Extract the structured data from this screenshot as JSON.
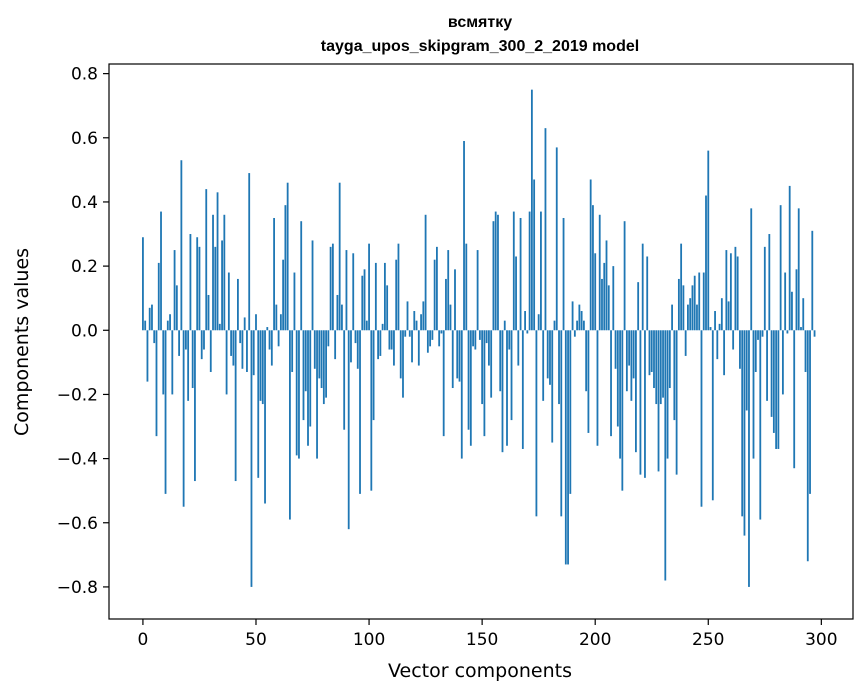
{
  "chart_data": {
    "type": "bar",
    "title_line1": "всмятку",
    "title_line2": "tayga_upos_skipgram_300_2_2019 model",
    "xlabel": "Vector components",
    "ylabel": "Components values",
    "xlim": [
      -15,
      314
    ],
    "ylim": [
      -0.9,
      0.83
    ],
    "xticks": [
      0,
      50,
      100,
      150,
      200,
      250,
      300
    ],
    "yticks": [
      -0.8,
      -0.6,
      -0.4,
      -0.2,
      0.0,
      0.2,
      0.4,
      0.6,
      0.8
    ],
    "ytick_labels": [
      "−0.8",
      "−0.6",
      "−0.4",
      "−0.2",
      "0.0",
      "0.2",
      "0.4",
      "0.6",
      "0.8"
    ],
    "grid": false,
    "color": "#1f77b4",
    "values": [
      0.29,
      0.03,
      -0.16,
      0.07,
      0.08,
      -0.04,
      -0.33,
      0.21,
      0.37,
      -0.2,
      -0.51,
      0.03,
      0.05,
      -0.2,
      0.25,
      0.14,
      -0.08,
      0.53,
      -0.55,
      -0.06,
      -0.22,
      0.3,
      -0.18,
      -0.47,
      0.29,
      0.26,
      -0.09,
      -0.06,
      0.44,
      0.11,
      -0.13,
      0.36,
      0.26,
      0.43,
      0.02,
      0.28,
      0.36,
      -0.2,
      0.18,
      -0.08,
      -0.11,
      -0.47,
      0.16,
      -0.04,
      -0.12,
      0.04,
      -0.13,
      0.49,
      -0.8,
      -0.14,
      0.05,
      -0.46,
      -0.22,
      -0.23,
      -0.54,
      0.01,
      -0.06,
      -0.11,
      0.35,
      0.08,
      -0.05,
      0.05,
      0.22,
      0.39,
      0.46,
      -0.59,
      -0.13,
      0.18,
      -0.39,
      -0.4,
      0.34,
      -0.28,
      -0.19,
      -0.36,
      -0.3,
      0.28,
      -0.12,
      -0.4,
      -0.15,
      -0.18,
      -0.23,
      -0.21,
      -0.05,
      0.26,
      0.27,
      -0.09,
      0.11,
      0.46,
      0.08,
      -0.31,
      0.25,
      -0.62,
      -0.1,
      0.24,
      -0.04,
      -0.12,
      -0.51,
      0.17,
      0.19,
      0.03,
      0.27,
      -0.5,
      -0.28,
      0.21,
      -0.09,
      -0.08,
      0.02,
      0.21,
      0.14,
      -0.06,
      -0.06,
      -0.11,
      0.22,
      0.27,
      -0.15,
      -0.21,
      -0.02,
      0.09,
      -0.02,
      -0.1,
      0.06,
      0.03,
      -0.11,
      0.05,
      0.09,
      0.36,
      -0.07,
      -0.05,
      -0.03,
      0.22,
      0.26,
      -0.05,
      -0.01,
      -0.33,
      0.16,
      0.25,
      0.08,
      -0.18,
      0.19,
      -0.15,
      -0.16,
      -0.4,
      0.59,
      0.27,
      -0.31,
      -0.36,
      -0.05,
      -0.06,
      0.25,
      -0.03,
      -0.23,
      -0.33,
      -0.04,
      -0.11,
      -0.21,
      0.34,
      0.37,
      0.36,
      -0.19,
      -0.38,
      0.03,
      -0.36,
      -0.06,
      -0.28,
      0.37,
      0.23,
      -0.11,
      0.35,
      -0.37,
      0.06,
      -0.01,
      0.37,
      0.75,
      0.47,
      -0.58,
      0.05,
      0.37,
      -0.22,
      0.63,
      -0.15,
      -0.17,
      -0.35,
      0.03,
      0.57,
      -0.23,
      -0.58,
      0.35,
      -0.73,
      -0.73,
      -0.51,
      0.09,
      -0.02,
      0.03,
      0.08,
      0.06,
      0.03,
      -0.19,
      -0.32,
      0.47,
      0.39,
      0.24,
      -0.36,
      0.36,
      0.16,
      0.21,
      0.28,
      0.14,
      -0.33,
      0.2,
      -0.12,
      -0.3,
      -0.4,
      -0.5,
      0.34,
      -0.19,
      -0.11,
      -0.22,
      -0.15,
      -0.38,
      0.15,
      -0.45,
      0.27,
      -0.46,
      0.23,
      -0.14,
      -0.13,
      -0.18,
      -0.23,
      -0.44,
      -0.23,
      -0.21,
      -0.78,
      -0.4,
      -0.18,
      0.08,
      -0.28,
      -0.45,
      0.16,
      0.27,
      0.14,
      -0.08,
      0.08,
      0.1,
      0.14,
      0.17,
      0.08,
      0.18,
      -0.55,
      0.18,
      0.42,
      0.56,
      0.01,
      -0.53,
      0.06,
      -0.09,
      0.02,
      0.1,
      -0.14,
      0.25,
      0.09,
      0.24,
      -0.06,
      0.26,
      0.23,
      -0.12,
      -0.58,
      -0.64,
      -0.25,
      -0.8,
      0.38,
      -0.4,
      -0.13,
      -0.03,
      -0.59,
      -0.02,
      0.26,
      -0.22,
      0.3,
      -0.27,
      -0.32,
      -0.37,
      -0.37,
      0.39,
      -0.2,
      0.18,
      -0.01,
      0.45,
      0.12,
      -0.43,
      0.19,
      0.38,
      0.01,
      0.1,
      -0.13,
      -0.72,
      -0.51,
      0.31,
      -0.02
    ]
  }
}
